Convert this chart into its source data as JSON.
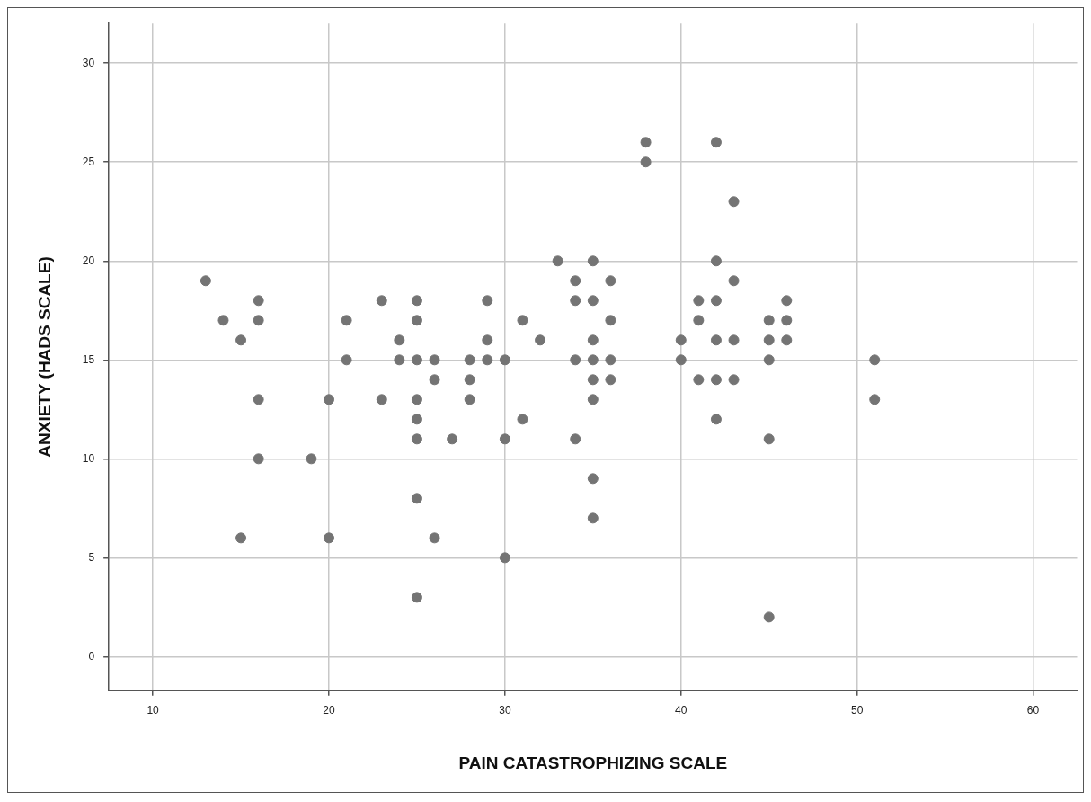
{
  "chart_data": {
    "type": "scatter",
    "xlabel": "PAIN CATASTROPHIZING SCALE",
    "ylabel": "ANXIETY (HADS SCALE)",
    "x": [
      13,
      14,
      15,
      15,
      16,
      16,
      16,
      16,
      19,
      20,
      20,
      21,
      21,
      23,
      23,
      24,
      24,
      25,
      25,
      25,
      25,
      25,
      25,
      25,
      25,
      26,
      26,
      26,
      27,
      28,
      28,
      28,
      29,
      29,
      29,
      30,
      30,
      30,
      31,
      31,
      32,
      33,
      34,
      34,
      34,
      34,
      35,
      35,
      35,
      35,
      35,
      35,
      35,
      35,
      36,
      36,
      36,
      36,
      38,
      38,
      40,
      40,
      41,
      41,
      41,
      42,
      42,
      42,
      42,
      42,
      42,
      43,
      43,
      43,
      43,
      45,
      45,
      45,
      45,
      45,
      46,
      46,
      46,
      51,
      51
    ],
    "series": [
      {
        "color": "#747474",
        "values": [
          19,
          17,
          16,
          6,
          18,
          17,
          13,
          10,
          10,
          13,
          6,
          17,
          15,
          18,
          13,
          16,
          15,
          18,
          17,
          15,
          13,
          12,
          11,
          8,
          3,
          15,
          14,
          6,
          11,
          15,
          14,
          13,
          18,
          16,
          15,
          15,
          11,
          5,
          17,
          12,
          16,
          20,
          19,
          18,
          15,
          11,
          20,
          18,
          16,
          15,
          14,
          13,
          9,
          7,
          19,
          17,
          15,
          14,
          26,
          25,
          16,
          15,
          18,
          17,
          14,
          26,
          20,
          18,
          16,
          14,
          12,
          23,
          19,
          16,
          14,
          17,
          16,
          15,
          11,
          2,
          18,
          17,
          16,
          15,
          13
        ]
      }
    ],
    "xlim": [
      7.5,
      62.5
    ],
    "ylim": [
      -1.7,
      32
    ],
    "xticks": [
      10,
      20,
      30,
      40,
      50,
      60
    ],
    "yticks": [
      0,
      5,
      10,
      15,
      20,
      25,
      30
    ],
    "grid": true,
    "legend": false,
    "marker": "circle"
  }
}
